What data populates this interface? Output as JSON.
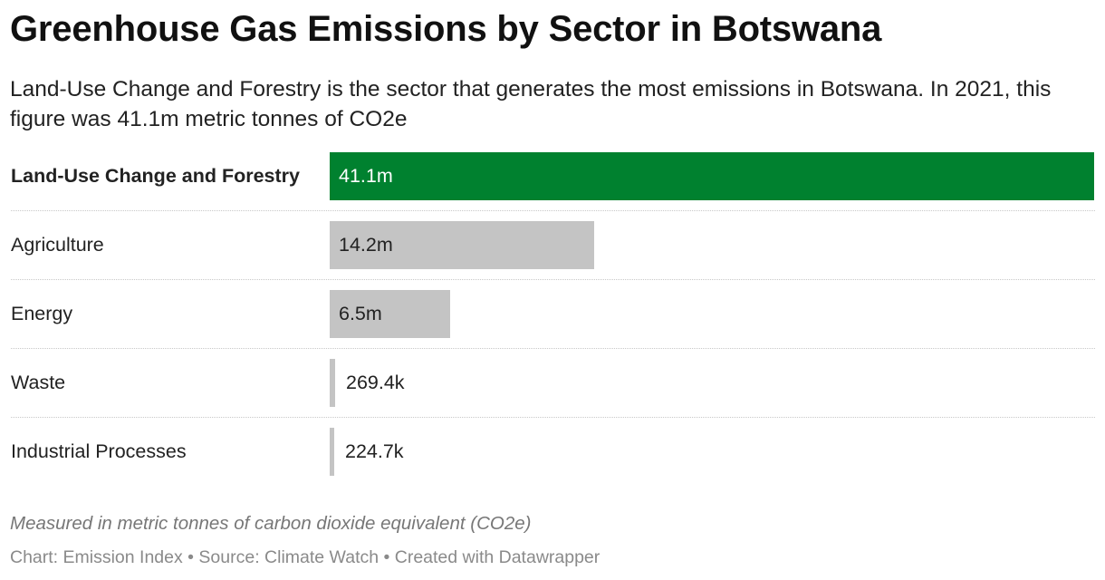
{
  "header": {
    "title": "Greenhouse Gas Emissions by Sector in Botswana",
    "subtitle": "Land-Use Change and Forestry is the sector that generates the most emissions in Botswana. In 2021, this figure was 41.1m metric tonnes of CO2e"
  },
  "footer": {
    "note": "Measured in metric tonnes of carbon dioxide equivalent (CO2e)",
    "credits": "Chart: Emission Index • Source: Climate Watch • Created with Datawrapper"
  },
  "colors": {
    "highlight": "#00812f",
    "default_bar": "#c4c4c4",
    "highlight_text": "#ffffff",
    "default_text": "#222222"
  },
  "chart_data": {
    "type": "bar",
    "orientation": "horizontal",
    "categories": [
      "Land-Use Change and Forestry",
      "Agriculture",
      "Energy",
      "Waste",
      "Industrial Processes"
    ],
    "values": [
      41100000,
      14200000,
      6500000,
      269400,
      224700
    ],
    "value_labels": [
      "41.1m",
      "14.2m",
      "6.5m",
      "269.4k",
      "224.7k"
    ],
    "highlighted": "Land-Use Change and Forestry",
    "xlim": [
      0,
      41100000
    ],
    "grid": false
  }
}
